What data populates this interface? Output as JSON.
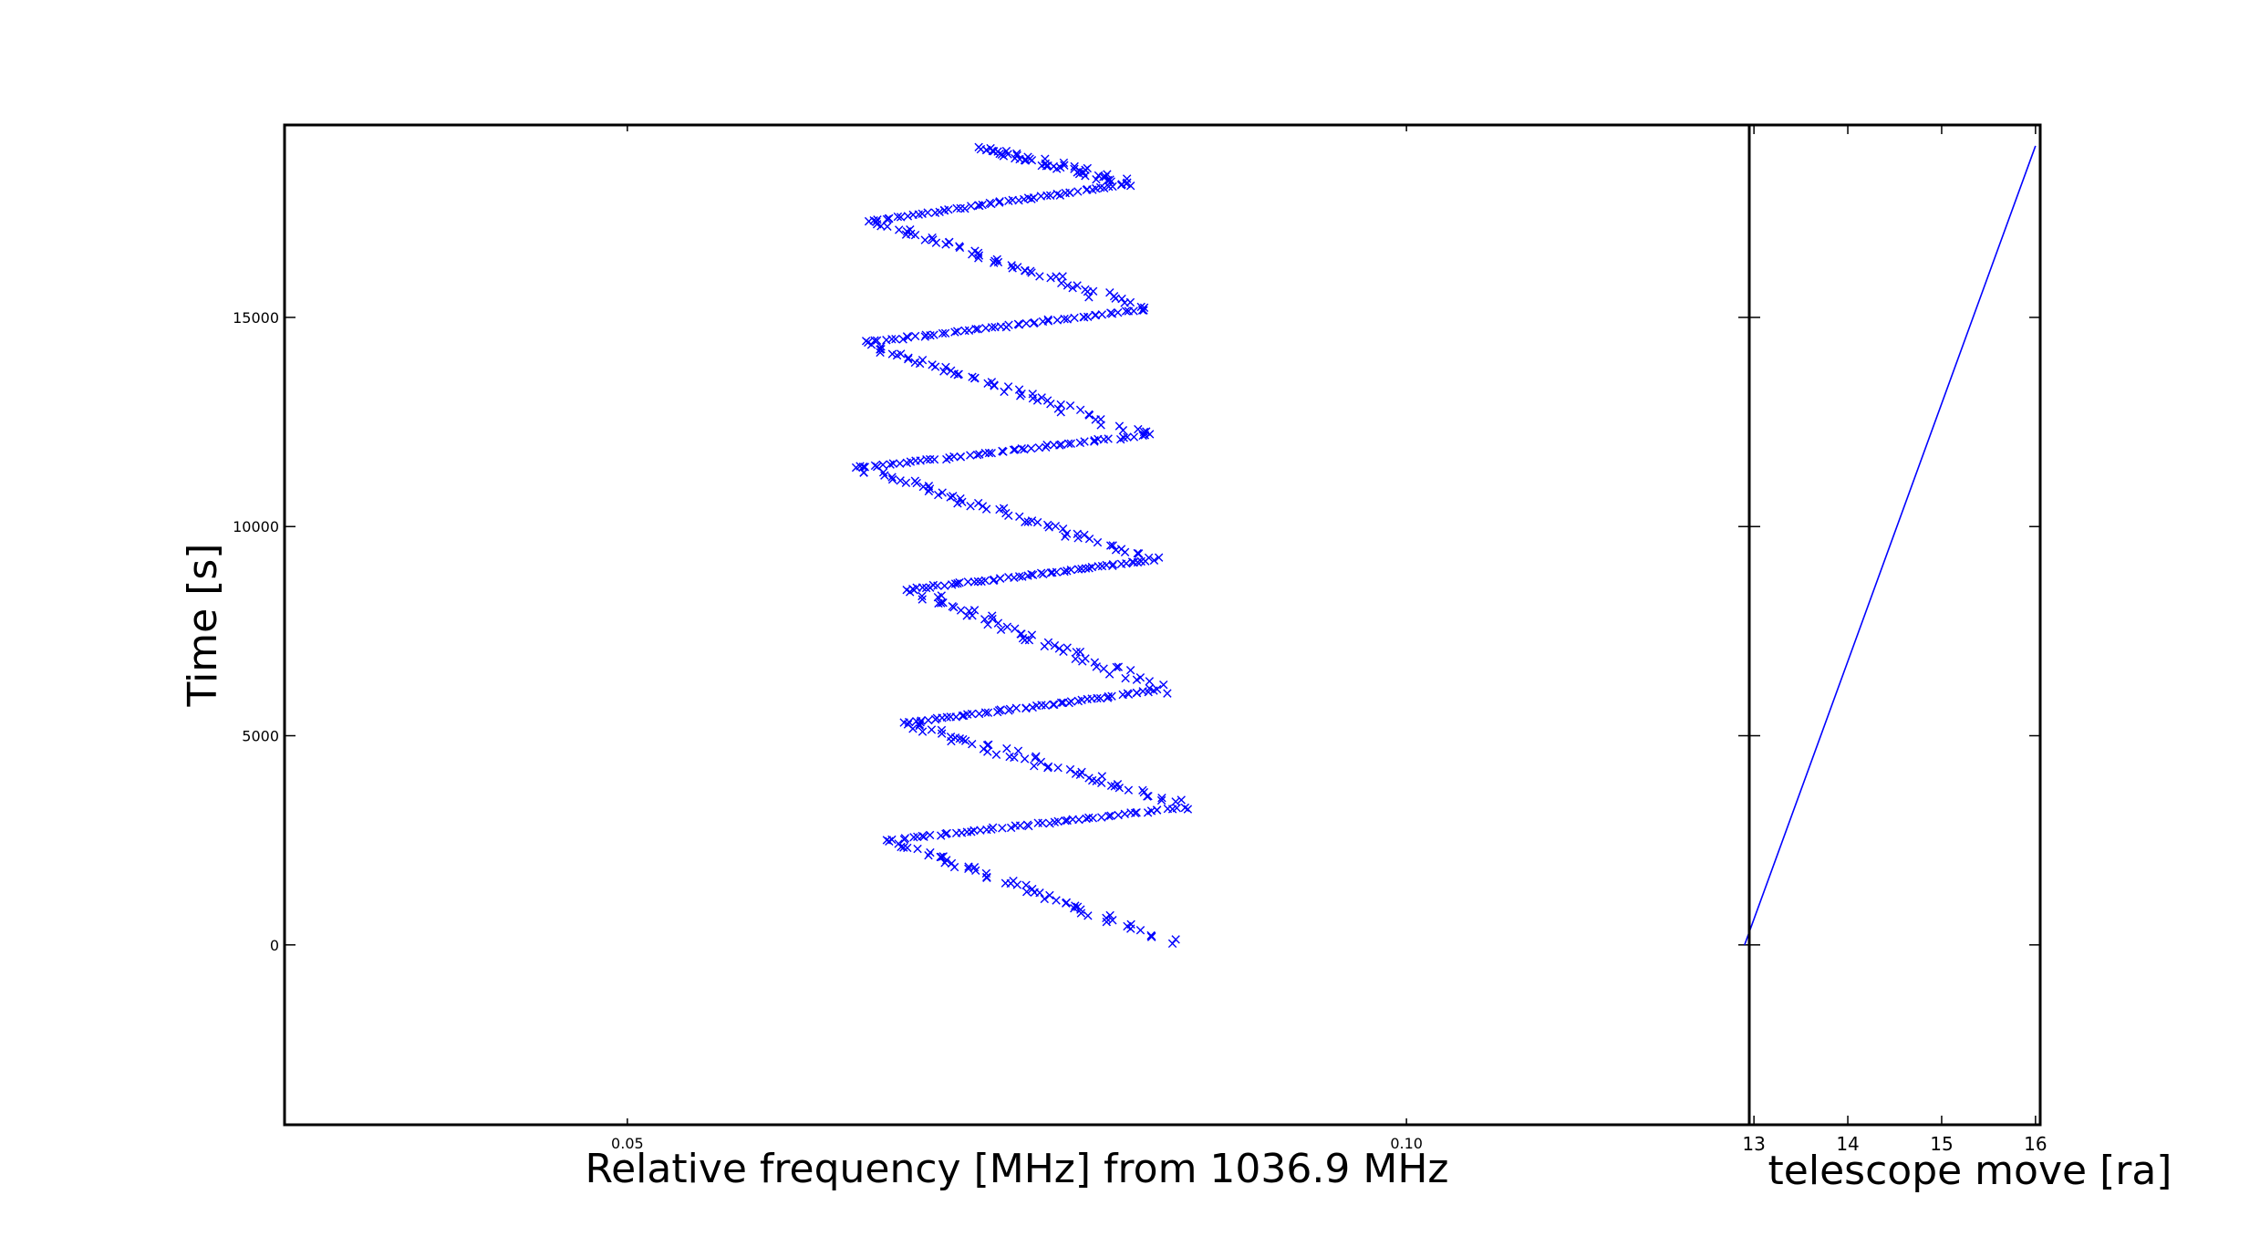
{
  "chart_data": [
    {
      "type": "scatter",
      "xlabel": "Relative frequency [MHz] from 1036.9 MHz",
      "ylabel": "Time [s]",
      "xlim": [
        0.028,
        0.122
      ],
      "ylim": [
        -4300,
        19600
      ],
      "xticks": [
        0.05,
        0.1
      ],
      "xtick_labels": [
        "0.05",
        "0.10"
      ],
      "yticks": [
        0,
        5000,
        10000,
        15000
      ],
      "ytick_labels": [
        "0",
        "5000",
        "10000",
        "15000"
      ],
      "grid": false,
      "marker": "x",
      "color": "#0000ff",
      "path": [
        [
          0.0852,
          50
        ],
        [
          0.0668,
          2500
        ],
        [
          0.086,
          3300
        ],
        [
          0.0678,
          5300
        ],
        [
          0.0844,
          6100
        ],
        [
          0.0681,
          8500
        ],
        [
          0.084,
          9200
        ],
        [
          0.0648,
          11400
        ],
        [
          0.0834,
          12200
        ],
        [
          0.0652,
          14400
        ],
        [
          0.0836,
          15200
        ],
        [
          0.0656,
          17300
        ],
        [
          0.0823,
          18200
        ],
        [
          0.0725,
          19100
        ]
      ],
      "points_per_segment": 55
    },
    {
      "type": "line",
      "xlabel": "telescope move [ra]",
      "ylabel": "",
      "xlim": [
        12.95,
        16.05
      ],
      "xticks": [
        13,
        14,
        15,
        16
      ],
      "xtick_labels": [
        "13",
        "14",
        "15",
        "16"
      ],
      "ylim": [
        -4300,
        19600
      ],
      "grid": false,
      "color": "#0000ff",
      "x": [
        12.9,
        16.0
      ],
      "y": [
        0,
        19100
      ]
    }
  ]
}
